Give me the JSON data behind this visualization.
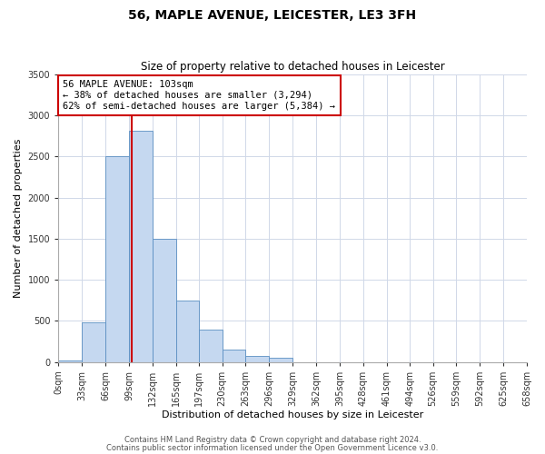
{
  "title": "56, MAPLE AVENUE, LEICESTER, LE3 3FH",
  "subtitle": "Size of property relative to detached houses in Leicester",
  "xlabel": "Distribution of detached houses by size in Leicester",
  "ylabel": "Number of detached properties",
  "footnote1": "Contains HM Land Registry data © Crown copyright and database right 2024.",
  "footnote2": "Contains public sector information licensed under the Open Government Licence v3.0.",
  "bin_edges": [
    0,
    33,
    66,
    99,
    132,
    165,
    197,
    230,
    263,
    296,
    329,
    362,
    395,
    428,
    461,
    494,
    526,
    559,
    592,
    625,
    658
  ],
  "bin_labels": [
    "0sqm",
    "33sqm",
    "66sqm",
    "99sqm",
    "132sqm",
    "165sqm",
    "197sqm",
    "230sqm",
    "263sqm",
    "296sqm",
    "329sqm",
    "362sqm",
    "395sqm",
    "428sqm",
    "461sqm",
    "494sqm",
    "526sqm",
    "559sqm",
    "592sqm",
    "625sqm",
    "658sqm"
  ],
  "bar_heights": [
    20,
    480,
    2500,
    2820,
    1500,
    750,
    390,
    150,
    70,
    50,
    0,
    0,
    0,
    0,
    0,
    0,
    0,
    0,
    0,
    0
  ],
  "bar_color": "#c5d8f0",
  "bar_edge_color": "#5a8fc2",
  "property_line_x": 103,
  "property_line_color": "#cc0000",
  "annotation_line1": "56 MAPLE AVENUE: 103sqm",
  "annotation_line2": "← 38% of detached houses are smaller (3,294)",
  "annotation_line3": "62% of semi-detached houses are larger (5,384) →",
  "annotation_box_color": "#ffffff",
  "annotation_box_edge_color": "#cc0000",
  "ylim": [
    0,
    3500
  ],
  "xlim_left": 0,
  "xlim_right": 658,
  "grid_color": "#d0d8e8",
  "background_color": "#ffffff",
  "title_fontsize": 10,
  "subtitle_fontsize": 8.5,
  "axis_label_fontsize": 8,
  "tick_fontsize": 7,
  "footnote_fontsize": 6,
  "annotation_fontsize": 7.5
}
